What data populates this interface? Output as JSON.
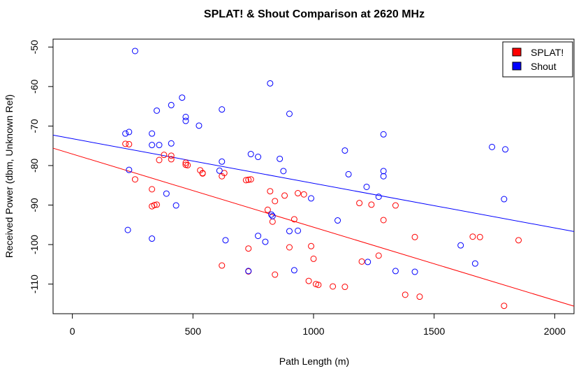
{
  "chart_data": {
    "type": "scatter",
    "title": "SPLAT! & Shout Comparison at 2620 MHz",
    "xlabel": "Path Length (m)",
    "ylabel": "Received Power (dbm, Unknown Ref)",
    "xlim": [
      -80,
      2080
    ],
    "ylim": [
      -117.5,
      -48
    ],
    "xticks": [
      0,
      500,
      1000,
      1500,
      2000
    ],
    "yticks": [
      -110,
      -100,
      -90,
      -80,
      -70,
      -60,
      -50
    ],
    "grid": false,
    "legend_position": "top-right",
    "series": [
      {
        "name": "SPLAT!",
        "color": "#ff0000",
        "marker": "open-circle",
        "regression": [
          [
            -80,
            -75.6
          ],
          [
            2080,
            -115.6
          ]
        ],
        "points": [
          [
            220,
            -74.5
          ],
          [
            235,
            -74.6
          ],
          [
            260,
            -83.5
          ],
          [
            330,
            -86.0
          ],
          [
            330,
            -90.3
          ],
          [
            340,
            -90.0
          ],
          [
            350,
            -89.9
          ],
          [
            360,
            -78.6
          ],
          [
            380,
            -77.3
          ],
          [
            410,
            -78.4
          ],
          [
            410,
            -77.5
          ],
          [
            470,
            -79.3
          ],
          [
            470,
            -79.8
          ],
          [
            478,
            -79.9
          ],
          [
            530,
            -81.2
          ],
          [
            540,
            -81.9
          ],
          [
            540,
            -82.0
          ],
          [
            620,
            -105.3
          ],
          [
            620,
            -82.7
          ],
          [
            630,
            -81.9
          ],
          [
            720,
            -83.7
          ],
          [
            730,
            -83.6
          ],
          [
            740,
            -83.5
          ],
          [
            730,
            -101.0
          ],
          [
            730,
            -106.8
          ],
          [
            810,
            -91.2
          ],
          [
            820,
            -86.5
          ],
          [
            830,
            -94.2
          ],
          [
            840,
            -89.0
          ],
          [
            840,
            -107.6
          ],
          [
            880,
            -87.6
          ],
          [
            900,
            -100.7
          ],
          [
            920,
            -93.6
          ],
          [
            935,
            -87.0
          ],
          [
            960,
            -87.3
          ],
          [
            980,
            -109.2
          ],
          [
            990,
            -100.4
          ],
          [
            1000,
            -103.6
          ],
          [
            1010,
            -110.0
          ],
          [
            1020,
            -110.2
          ],
          [
            1080,
            -110.6
          ],
          [
            1130,
            -110.7
          ],
          [
            1190,
            -89.5
          ],
          [
            1200,
            -104.3
          ],
          [
            1240,
            -89.9
          ],
          [
            1270,
            -102.8
          ],
          [
            1290,
            -93.8
          ],
          [
            1340,
            -90.1
          ],
          [
            1380,
            -112.7
          ],
          [
            1420,
            -98.1
          ],
          [
            1440,
            -113.2
          ],
          [
            1660,
            -98.0
          ],
          [
            1690,
            -98.1
          ],
          [
            1790,
            -115.5
          ],
          [
            1850,
            -98.9
          ]
        ]
      },
      {
        "name": "Shout",
        "color": "#0000ff",
        "marker": "open-circle",
        "regression": [
          [
            -80,
            -72.3
          ],
          [
            2080,
            -96.7
          ]
        ],
        "points": [
          [
            220,
            -71.9
          ],
          [
            235,
            -71.5
          ],
          [
            235,
            -81.1
          ],
          [
            230,
            -96.3
          ],
          [
            260,
            -51.0
          ],
          [
            330,
            -71.9
          ],
          [
            330,
            -74.8
          ],
          [
            330,
            -98.5
          ],
          [
            350,
            -66.1
          ],
          [
            360,
            -74.8
          ],
          [
            390,
            -87.1
          ],
          [
            410,
            -64.7
          ],
          [
            410,
            -74.4
          ],
          [
            430,
            -90.1
          ],
          [
            455,
            -62.8
          ],
          [
            470,
            -67.7
          ],
          [
            470,
            -68.7
          ],
          [
            525,
            -69.9
          ],
          [
            610,
            -81.3
          ],
          [
            620,
            -65.8
          ],
          [
            620,
            -79.0
          ],
          [
            635,
            -98.9
          ],
          [
            740,
            -77.1
          ],
          [
            730,
            -106.7
          ],
          [
            770,
            -77.8
          ],
          [
            770,
            -97.8
          ],
          [
            800,
            -99.3
          ],
          [
            820,
            -59.2
          ],
          [
            825,
            -92.4
          ],
          [
            830,
            -92.8
          ],
          [
            860,
            -78.3
          ],
          [
            875,
            -81.4
          ],
          [
            900,
            -66.9
          ],
          [
            900,
            -96.6
          ],
          [
            920,
            -106.5
          ],
          [
            935,
            -96.5
          ],
          [
            990,
            -88.3
          ],
          [
            1100,
            -93.9
          ],
          [
            1130,
            -76.2
          ],
          [
            1145,
            -82.2
          ],
          [
            1220,
            -85.4
          ],
          [
            1225,
            -104.4
          ],
          [
            1270,
            -87.9
          ],
          [
            1290,
            -72.1
          ],
          [
            1290,
            -81.4
          ],
          [
            1290,
            -82.7
          ],
          [
            1340,
            -106.7
          ],
          [
            1420,
            -106.9
          ],
          [
            1610,
            -100.2
          ],
          [
            1670,
            -104.8
          ],
          [
            1740,
            -75.3
          ],
          [
            1790,
            -88.5
          ],
          [
            1795,
            -75.9
          ]
        ]
      }
    ]
  }
}
